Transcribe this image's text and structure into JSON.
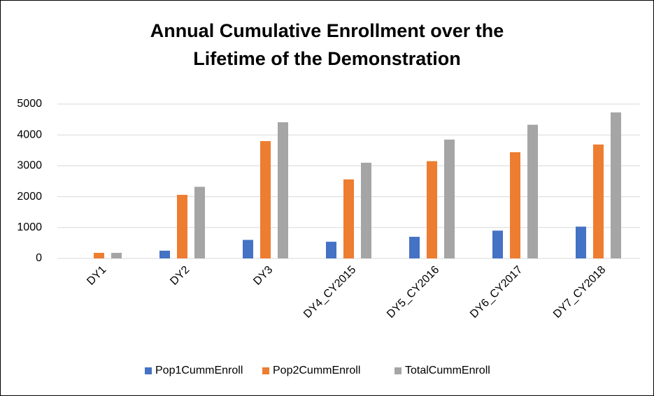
{
  "chart_data": {
    "type": "bar",
    "title": "Annual Cumulative Enrollment over the Lifetime of the Demonstration",
    "categories": [
      "DY1",
      "DY2",
      "DY3",
      "DY4_CY2015",
      "DY5_CY2016",
      "DY6_CY2017",
      "DY7_CY2018"
    ],
    "series": [
      {
        "name": "Pop1CummEnroll",
        "color": "#4472c4",
        "values": [
          0,
          250,
          600,
          540,
          700,
          900,
          1030
        ]
      },
      {
        "name": "Pop2CummEnroll",
        "color": "#ed7d31",
        "values": [
          180,
          2060,
          3800,
          2560,
          3150,
          3440,
          3690
        ]
      },
      {
        "name": "TotalCummEnroll",
        "color": "#a5a5a5",
        "values": [
          180,
          2320,
          4410,
          3100,
          3850,
          4330,
          4730
        ]
      }
    ],
    "ylim": [
      0,
      5000
    ],
    "yticks": [
      0,
      1000,
      2000,
      3000,
      4000,
      5000
    ],
    "grid": true,
    "legend": "bottom"
  }
}
